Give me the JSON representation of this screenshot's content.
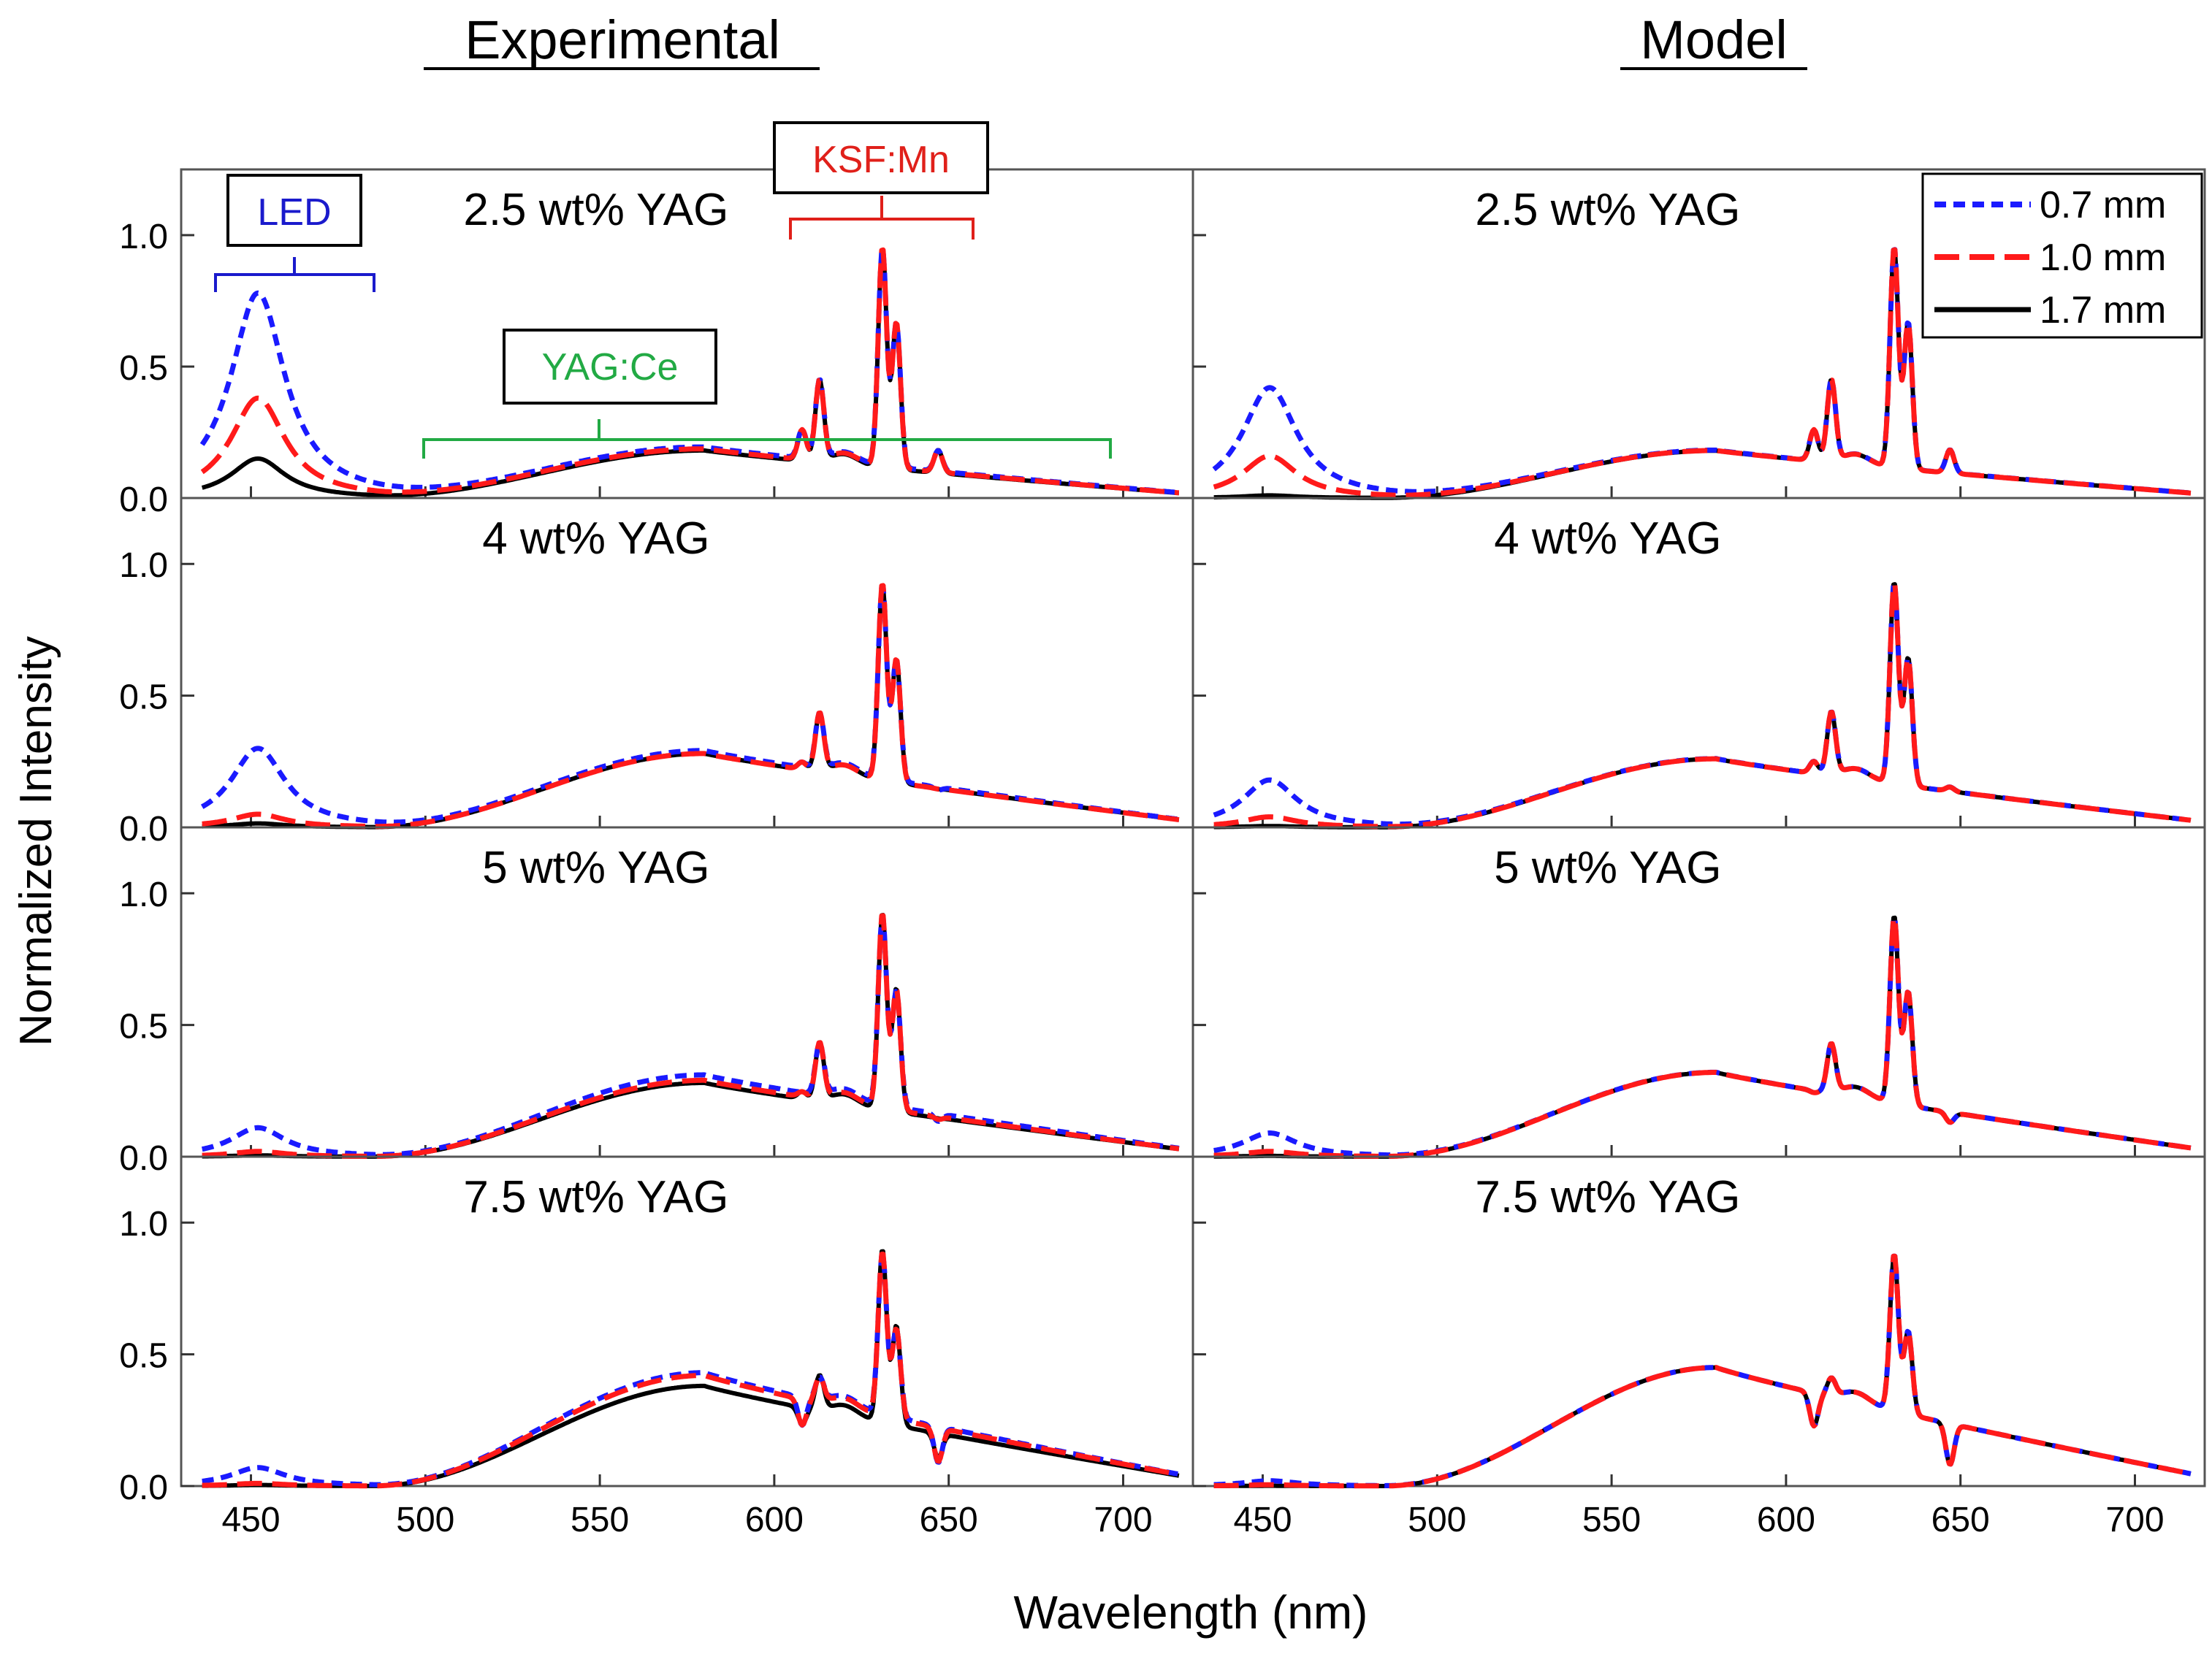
{
  "figure": {
    "col_titles": [
      "Experimental",
      "Model"
    ],
    "ylabel": "Normalized Intensity",
    "xlabel": "Wavelength (nm)",
    "x_ticks": [
      "450",
      "500",
      "550",
      "600",
      "650",
      "700"
    ],
    "y_ticks": [
      "0.0",
      "0.5",
      "1.0"
    ],
    "row_labels": [
      "2.5 wt% YAG",
      "4 wt% YAG",
      "5 wt% YAG",
      "7.5 wt% YAG"
    ],
    "legend": [
      "0.7 mm",
      "1.0 mm",
      "1.7 mm"
    ],
    "annotations": {
      "led": "LED",
      "ksf": "KSF:Mn",
      "yag": "YAG:Ce"
    },
    "colors": {
      "t07": "#1a1aff",
      "t10": "#ff1a1a",
      "t17": "#000000",
      "led": "#1a1acc",
      "ksf": "#e0201a",
      "yag": "#22aa44",
      "axis": "#555555"
    }
  },
  "chart_data": {
    "type": "line",
    "title": "",
    "xlabel": "Wavelength (nm)",
    "ylabel": "Normalized Intensity",
    "xlim": [
      430,
      720
    ],
    "ylim": [
      0,
      1.25
    ],
    "series_names": [
      "0.7 mm",
      "1.0 mm",
      "1.7 mm"
    ],
    "panels": [
      {
        "panel": "Experimental",
        "label": "2.5 wt% YAG",
        "led_peak": [
          0.78,
          0.38,
          0.15
        ],
        "yag_level": [
          0.19,
          0.185,
          0.18
        ],
        "ksf_scale": [
          1,
          1,
          1
        ]
      },
      {
        "panel": "Experimental",
        "label": "4 wt% YAG",
        "led_peak": [
          0.3,
          0.05,
          0.015
        ],
        "yag_level": [
          0.29,
          0.28,
          0.28
        ],
        "ksf_scale": [
          1,
          1,
          1
        ]
      },
      {
        "panel": "Experimental",
        "label": "5 wt% YAG",
        "led_peak": [
          0.11,
          0.02,
          0.005
        ],
        "yag_level": [
          0.31,
          0.29,
          0.28
        ],
        "ksf_scale": [
          1,
          1,
          1
        ]
      },
      {
        "panel": "Experimental",
        "label": "7.5 wt% YAG",
        "led_peak": [
          0.07,
          0.01,
          0.004
        ],
        "yag_level": [
          0.43,
          0.42,
          0.38
        ],
        "ksf_scale": [
          1,
          1,
          1
        ]
      },
      {
        "panel": "Model",
        "label": "2.5 wt% YAG",
        "led_peak": [
          0.42,
          0.16,
          0.01
        ],
        "yag_level": [
          0.18,
          0.18,
          0.18
        ],
        "ksf_scale": [
          1,
          1,
          1
        ]
      },
      {
        "panel": "Model",
        "label": "4 wt% YAG",
        "led_peak": [
          0.18,
          0.04,
          0.005
        ],
        "yag_level": [
          0.26,
          0.26,
          0.26
        ],
        "ksf_scale": [
          1,
          1,
          1
        ]
      },
      {
        "panel": "Model",
        "label": "5 wt% YAG",
        "led_peak": [
          0.09,
          0.02,
          0.003
        ],
        "yag_level": [
          0.32,
          0.32,
          0.32
        ],
        "ksf_scale": [
          1,
          1,
          1
        ]
      },
      {
        "panel": "Model",
        "label": "7.5 wt% YAG",
        "led_peak": [
          0.02,
          0.005,
          0.001
        ],
        "yag_level": [
          0.45,
          0.45,
          0.45
        ],
        "ksf_scale": [
          1,
          1,
          1
        ]
      }
    ],
    "ksf_peaks": [
      {
        "nm": 608,
        "rel": 0.28
      },
      {
        "nm": 613,
        "rel": 0.47
      },
      {
        "nm": 631,
        "rel": 1.0
      },
      {
        "nm": 635,
        "rel": 0.72
      },
      {
        "nm": 647,
        "rel": 0.25
      }
    ]
  }
}
